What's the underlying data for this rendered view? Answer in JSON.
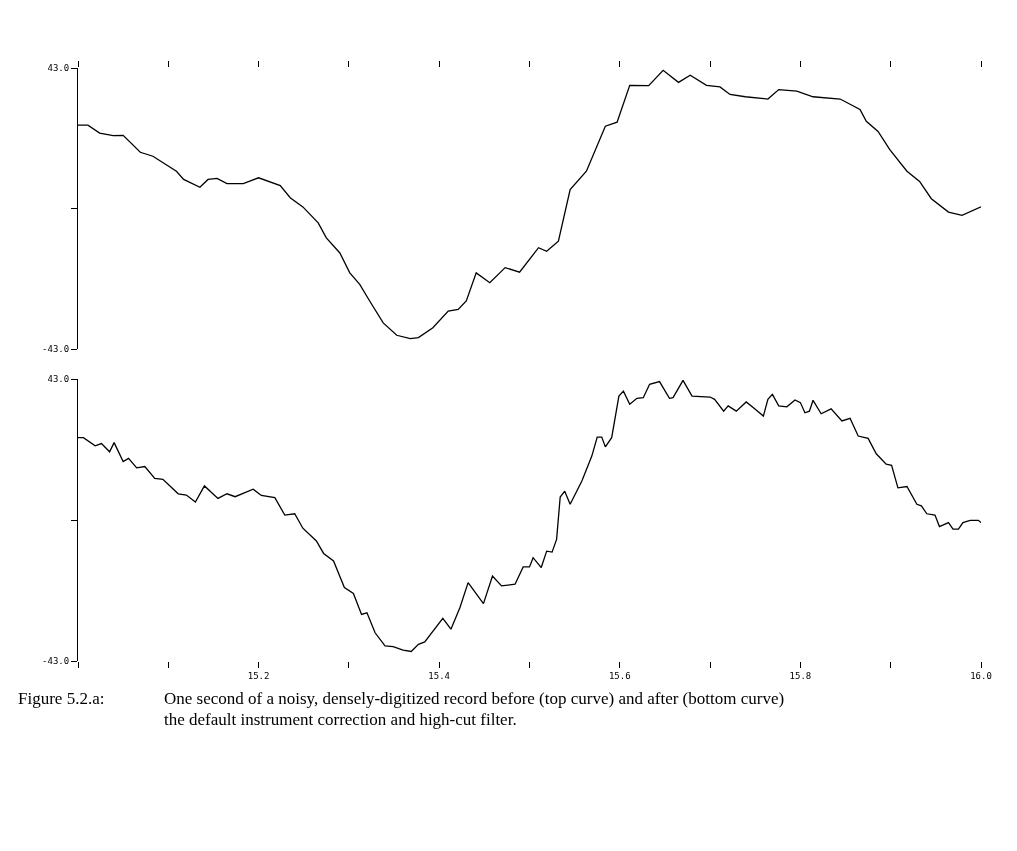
{
  "chart_data": [
    {
      "type": "line",
      "xlim": [
        15.0,
        16.0
      ],
      "ylim": [
        -43,
        43
      ],
      "xticks": [
        {
          "value": 15.0,
          "label": null
        },
        {
          "value": 15.1,
          "label": null
        },
        {
          "value": 15.2,
          "label": null
        },
        {
          "value": 15.3,
          "label": null
        },
        {
          "value": 15.4,
          "label": null
        },
        {
          "value": 15.5,
          "label": null
        },
        {
          "value": 15.6,
          "label": null
        },
        {
          "value": 15.7,
          "label": null
        },
        {
          "value": 15.8,
          "label": null
        },
        {
          "value": 15.9,
          "label": null
        },
        {
          "value": 16.0,
          "label": null
        }
      ],
      "yticks": [
        {
          "value": -43,
          "label": "-43.0"
        },
        {
          "value": 0,
          "label": null
        },
        {
          "value": 43,
          "label": "43.0"
        }
      ],
      "tick_labels": "y",
      "grid": false,
      "marker": "none",
      "line_style": "solid",
      "series": [
        {
          "color": "#000000",
          "x": [
            15.0,
            15.011,
            15.024,
            15.039,
            15.05,
            15.069,
            15.083,
            15.109,
            15.117,
            15.135,
            15.144,
            15.154,
            15.165,
            15.183,
            15.2,
            15.224,
            15.235,
            15.249,
            15.266,
            15.275,
            15.29,
            15.301,
            15.312,
            15.323,
            15.338,
            15.353,
            15.368,
            15.377,
            15.393,
            15.41,
            15.421,
            15.43,
            15.441,
            15.456,
            15.473,
            15.489,
            15.51,
            15.519,
            15.532,
            15.545,
            15.563,
            15.584,
            15.597,
            15.611,
            15.632,
            15.648,
            15.665,
            15.678,
            15.696,
            15.711,
            15.722,
            15.739,
            15.764,
            15.776,
            15.796,
            15.814,
            15.844,
            15.866,
            15.873,
            15.886,
            15.899,
            15.918,
            15.932,
            15.945,
            15.964,
            15.979,
            16.0
          ],
          "values": [
            25.5,
            25.5,
            23.1,
            22.3,
            22.4,
            17.2,
            16.0,
            11.4,
            8.9,
            6.5,
            8.9,
            9.2,
            7.6,
            7.6,
            9.4,
            7.0,
            3.3,
            0.5,
            -4.4,
            -9.0,
            -13.6,
            -19.7,
            -23.2,
            -28.3,
            -35.0,
            -38.8,
            -39.8,
            -39.5,
            -36.5,
            -31.4,
            -30.9,
            -28.3,
            -19.7,
            -22.7,
            -18.1,
            -19.5,
            -12.0,
            -13.1,
            -10.0,
            5.8,
            11.4,
            25.2,
            26.4,
            37.7,
            37.6,
            42.3,
            38.6,
            40.8,
            37.7,
            37.2,
            34.9,
            34.2,
            33.5,
            36.4,
            35.9,
            34.2,
            33.5,
            30.3,
            26.7,
            23.6,
            18.0,
            11.4,
            8.3,
            3.0,
            -1.1,
            -2.1,
            0.5
          ]
        }
      ]
    },
    {
      "type": "line",
      "xlim": [
        15.0,
        16.0
      ],
      "ylim": [
        -43,
        43
      ],
      "xticks": [
        {
          "value": 15.0,
          "label": null
        },
        {
          "value": 15.1,
          "label": null
        },
        {
          "value": 15.2,
          "label": "15.2"
        },
        {
          "value": 15.3,
          "label": null
        },
        {
          "value": 15.4,
          "label": "15.4"
        },
        {
          "value": 15.5,
          "label": null
        },
        {
          "value": 15.6,
          "label": "15.6"
        },
        {
          "value": 15.7,
          "label": null
        },
        {
          "value": 15.8,
          "label": "15.8"
        },
        {
          "value": 15.9,
          "label": null
        },
        {
          "value": 16.0,
          "label": "16.0"
        }
      ],
      "yticks": [
        {
          "value": -43,
          "label": "-43.0"
        },
        {
          "value": 0,
          "label": null
        },
        {
          "value": 43,
          "label": "43.0"
        }
      ],
      "grid": false,
      "marker": "none",
      "line_style": "solid",
      "annotations": [
        "Figure 5.2.a:\tOne second of a noisy, densely-digitized record before (top curve) and after (bottom curve) the default instrument correction and high-cut filter."
      ],
      "series": [
        {
          "color": "#000000",
          "x": [
            15.0,
            15.006,
            15.019,
            15.026,
            15.035,
            15.04,
            15.05,
            15.056,
            15.065,
            15.074,
            15.085,
            15.094,
            15.111,
            15.12,
            15.13,
            15.14,
            15.155,
            15.165,
            15.174,
            15.194,
            15.203,
            15.218,
            15.229,
            15.24,
            15.249,
            15.264,
            15.272,
            15.283,
            15.295,
            15.305,
            15.314,
            15.32,
            15.329,
            15.34,
            15.349,
            15.36,
            15.369,
            15.377,
            15.384,
            15.404,
            15.413,
            15.423,
            15.432,
            15.449,
            15.459,
            15.469,
            15.484,
            15.493,
            15.5,
            15.504,
            15.513,
            15.519,
            15.525,
            15.53,
            15.534,
            15.539,
            15.545,
            15.558,
            15.569,
            15.575,
            15.58,
            15.584,
            15.591,
            15.599,
            15.604,
            15.611,
            15.619,
            15.626,
            15.633,
            15.644,
            15.655,
            15.659,
            15.67,
            15.68,
            15.7,
            15.705,
            15.715,
            15.72,
            15.729,
            15.74,
            15.748,
            15.759,
            15.764,
            15.769,
            15.776,
            15.785,
            15.794,
            15.8,
            15.805,
            15.81,
            15.814,
            15.823,
            15.834,
            15.846,
            15.855,
            15.864,
            15.875,
            15.884,
            15.895,
            15.901,
            15.908,
            15.918,
            15.929,
            15.934,
            15.94,
            15.949,
            15.954,
            15.964,
            15.969,
            15.975,
            15.98,
            15.988,
            15.997,
            16.0
          ],
          "values": [
            25.1,
            25.1,
            22.6,
            23.3,
            20.8,
            23.6,
            17.8,
            18.8,
            15.9,
            16.3,
            12.7,
            12.4,
            8.0,
            7.6,
            5.5,
            10.4,
            6.6,
            8.0,
            7.1,
            9.4,
            7.5,
            6.8,
            1.5,
            1.9,
            -2.5,
            -6.4,
            -10.2,
            -12.5,
            -20.6,
            -22.4,
            -28.8,
            -28.3,
            -34.4,
            -38.4,
            -38.6,
            -39.7,
            -40.1,
            -37.9,
            -37.2,
            -30.0,
            -33.3,
            -26.7,
            -19.1,
            -25.5,
            -17.1,
            -20.1,
            -19.6,
            -14.3,
            -14.3,
            -11.5,
            -14.5,
            -9.5,
            -9.8,
            -5.9,
            7.0,
            8.8,
            4.8,
            11.9,
            19.5,
            25.3,
            25.3,
            22.3,
            25.1,
            37.8,
            39.3,
            35.3,
            37.1,
            37.3,
            41.4,
            42.2,
            37.1,
            37.3,
            42.6,
            37.8,
            37.5,
            36.8,
            33.2,
            34.8,
            33.2,
            36.0,
            34.2,
            31.7,
            36.8,
            38.3,
            34.8,
            34.5,
            36.6,
            35.8,
            32.7,
            33.2,
            36.5,
            32.4,
            33.9,
            30.2,
            31.0,
            25.6,
            24.9,
            20.2,
            17.0,
            16.7,
            9.8,
            10.2,
            4.8,
            4.3,
            1.9,
            1.5,
            -2.0,
            -0.8,
            -2.8,
            -2.8,
            -0.8,
            -0.1,
            -0.1,
            -0.8
          ]
        }
      ]
    }
  ]
}
